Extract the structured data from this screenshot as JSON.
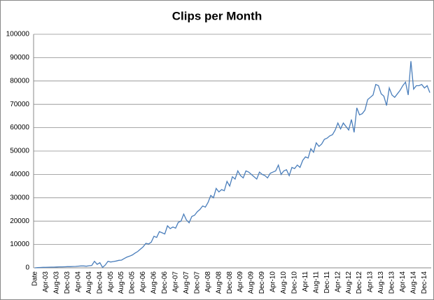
{
  "chart_data": {
    "type": "line",
    "title": "Clips per Month",
    "categories": [
      "Date",
      null,
      null,
      null,
      "Apr-03",
      null,
      null,
      null,
      "Aug-03",
      null,
      null,
      null,
      "Dec-03",
      null,
      null,
      null,
      "Apr-04",
      null,
      null,
      null,
      "Aug-04",
      null,
      null,
      null,
      "Dec-04",
      null,
      null,
      null,
      "Apr-05",
      null,
      null,
      null,
      "Aug-05",
      null,
      null,
      null,
      "Dec-05",
      null,
      null,
      null,
      "Apr-06",
      null,
      null,
      null,
      "Aug-06",
      null,
      null,
      null,
      "Dec-06",
      null,
      null,
      null,
      "Apr-07",
      null,
      null,
      null,
      "Aug-07",
      null,
      null,
      null,
      "Dec-07",
      null,
      null,
      null,
      "Apr-08",
      null,
      null,
      null,
      "Aug-08",
      null,
      null,
      null,
      "Dec-08",
      null,
      null,
      null,
      "Apr-09",
      null,
      null,
      null,
      "Aug-09",
      null,
      null,
      null,
      "Dec-09",
      null,
      null,
      null,
      "Apr-10",
      null,
      null,
      null,
      "Aug-10",
      null,
      null,
      null,
      "Dec-10",
      null,
      null,
      null,
      "Apr-11",
      null,
      null,
      null,
      "Aug-11",
      null,
      null,
      null,
      "Dec-11",
      null,
      null,
      null,
      "Apr-12",
      null,
      null,
      null,
      "Aug-12",
      null,
      null,
      null,
      "Dec-12",
      null,
      null,
      null,
      "Apr-13",
      null,
      null,
      null,
      "Aug-13",
      null,
      null,
      null,
      "Dec-13",
      null,
      null,
      null,
      "Apr-14",
      null,
      null,
      null,
      "Aug-14",
      null,
      null,
      null,
      "Dec-14",
      null,
      null
    ],
    "values": [
      0,
      100,
      150,
      200,
      200,
      250,
      300,
      300,
      350,
      400,
      400,
      450,
      500,
      500,
      550,
      600,
      700,
      800,
      800,
      700,
      900,
      1000,
      2800,
      1500,
      2200,
      200,
      1200,
      2800,
      2500,
      2700,
      2900,
      3200,
      3300,
      4000,
      4600,
      5000,
      5500,
      6300,
      7000,
      8000,
      9000,
      10500,
      10200,
      11000,
      13500,
      13000,
      15500,
      15000,
      14500,
      18000,
      16800,
      17500,
      17000,
      19500,
      20000,
      23000,
      20500,
      19300,
      22000,
      22500,
      24000,
      25000,
      26500,
      26000,
      28000,
      31000,
      30000,
      34000,
      32500,
      33500,
      33000,
      37000,
      35000,
      39000,
      38000,
      41500,
      39500,
      38500,
      41500,
      41000,
      40000,
      39000,
      38000,
      41000,
      40000,
      39500,
      38500,
      40500,
      41000,
      41500,
      44000,
      40000,
      41500,
      42000,
      39500,
      43000,
      42500,
      44000,
      43000,
      46000,
      47500,
      47000,
      51000,
      49500,
      53500,
      52000,
      53000,
      55000,
      55500,
      56500,
      57000,
      59000,
      62000,
      59500,
      62000,
      60500,
      59000,
      63500,
      58000,
      68500,
      65500,
      66000,
      67500,
      72000,
      73000,
      74000,
      78500,
      78000,
      74500,
      73500,
      69500,
      77000,
      74000,
      73000,
      74500,
      76000,
      78000,
      79500,
      74000,
      88500,
      76500,
      78000,
      78000,
      78500,
      77000,
      78000,
      75000
    ],
    "color": "#4a7ebb",
    "ylim": [
      0,
      100000
    ],
    "yticks": [
      0,
      10000,
      20000,
      30000,
      40000,
      50000,
      60000,
      70000,
      80000,
      90000,
      100000
    ],
    "grid": true
  }
}
